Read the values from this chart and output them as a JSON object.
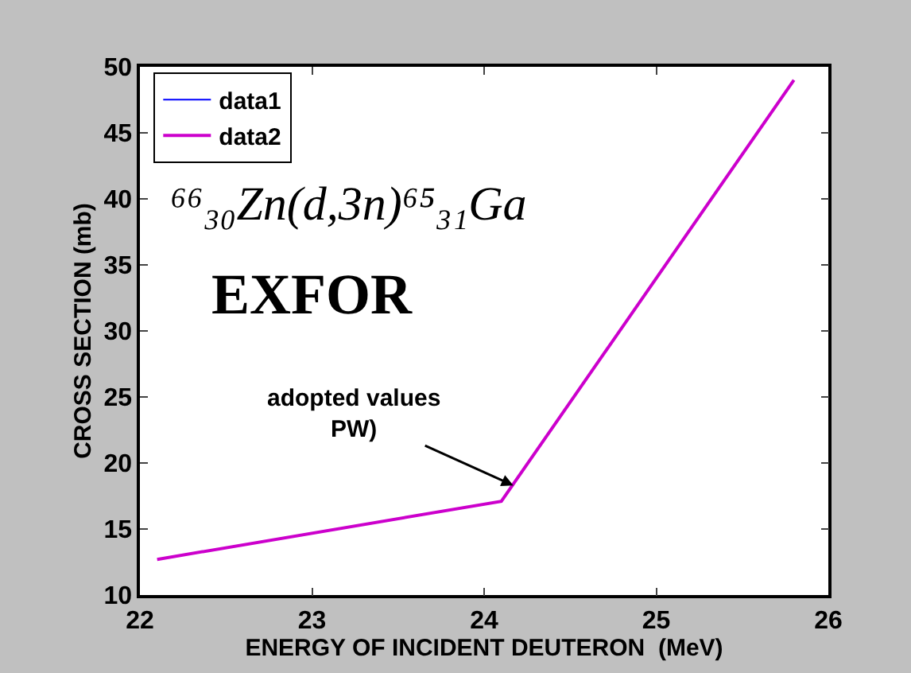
{
  "chart_data": {
    "type": "line",
    "xlabel": "ENERGY OF INCIDENT DEUTERON  (MeV)",
    "ylabel": "CROSS SECTION (mb)",
    "x": [
      22.1,
      24.1,
      25.8
    ],
    "series": [
      {
        "name": "data1",
        "color": "#0000ff",
        "values": [
          null,
          null,
          null
        ]
      },
      {
        "name": "data2",
        "color": "#cc00cc",
        "values": [
          12.7,
          17.1,
          49.0
        ]
      }
    ],
    "xlim": [
      22,
      26
    ],
    "xticks": [
      22,
      23,
      24,
      25,
      26
    ],
    "ylim": [
      10,
      50
    ],
    "yticks": [
      10,
      15,
      20,
      25,
      30,
      35,
      40,
      45,
      50
    ],
    "legend": "top left",
    "marker": "none",
    "line_style": "solid",
    "annotations": [
      "⁶⁶₃₀Zn(d,3n)⁶⁵₃₁Ga",
      "EXFOR",
      {
        "text": "adopted values\nPW)",
        "x": 24.17,
        "y": 18.3
      }
    ]
  }
}
